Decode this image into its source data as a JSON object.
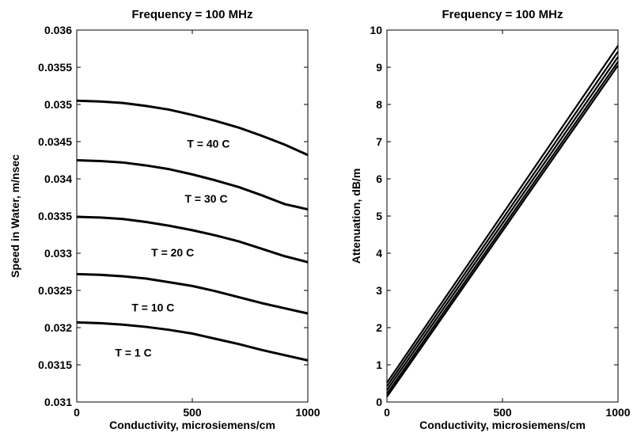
{
  "chart_data": [
    {
      "type": "line",
      "title": "Frequency = 100 MHz",
      "xlabel": "Conductivity, microsiemens/cm",
      "ylabel": "Speed in Water, m/nsec",
      "xlim": [
        0,
        1000
      ],
      "ylim": [
        0.031,
        0.036
      ],
      "xticks": [
        "0",
        "500",
        "1000"
      ],
      "yticks": [
        "0.031",
        "0.0315",
        "0.032",
        "0.0325",
        "0.033",
        "0.0335",
        "0.034",
        "0.0345",
        "0.035",
        "0.0355",
        "0.036"
      ],
      "grid": false,
      "series": [
        {
          "name": "T = 40 C",
          "x": [
            0,
            100,
            200,
            300,
            400,
            500,
            600,
            700,
            800,
            900,
            1000
          ],
          "values": [
            0.03505,
            0.03504,
            0.03502,
            0.03498,
            0.03493,
            0.03486,
            0.03478,
            0.03469,
            0.03458,
            0.03446,
            0.03432
          ]
        },
        {
          "name": "T = 30 C",
          "x": [
            0,
            100,
            200,
            300,
            400,
            500,
            600,
            700,
            800,
            900,
            1000
          ],
          "values": [
            0.03425,
            0.03424,
            0.03422,
            0.03418,
            0.03413,
            0.03406,
            0.03398,
            0.03389,
            0.03378,
            0.03366,
            0.03359
          ]
        },
        {
          "name": "T = 20 C",
          "x": [
            0,
            100,
            200,
            300,
            400,
            500,
            600,
            700,
            800,
            900,
            1000
          ],
          "values": [
            0.03349,
            0.03348,
            0.03346,
            0.03342,
            0.03337,
            0.03331,
            0.03324,
            0.03316,
            0.03306,
            0.03296,
            0.03288
          ]
        },
        {
          "name": "T = 10 C",
          "x": [
            0,
            100,
            200,
            300,
            400,
            500,
            600,
            700,
            800,
            900,
            1000
          ],
          "values": [
            0.03272,
            0.03271,
            0.03269,
            0.03266,
            0.03261,
            0.03256,
            0.03249,
            0.03241,
            0.03233,
            0.03226,
            0.03219
          ]
        },
        {
          "name": "T = 1 C",
          "x": [
            0,
            100,
            200,
            300,
            400,
            500,
            600,
            700,
            800,
            900,
            1000
          ],
          "values": [
            0.03207,
            0.03206,
            0.03204,
            0.03201,
            0.03197,
            0.03192,
            0.03185,
            0.03178,
            0.0317,
            0.03163,
            0.03156
          ]
        }
      ],
      "annotations": [
        {
          "text": "T = 40 C",
          "x": 570,
          "y": 0.03442
        },
        {
          "text": "T = 30 C",
          "x": 560,
          "y": 0.03368
        },
        {
          "text": "T = 20 C",
          "x": 415,
          "y": 0.03296
        },
        {
          "text": "T = 10 C",
          "x": 330,
          "y": 0.03222
        },
        {
          "text": "T = 1 C",
          "x": 245,
          "y": 0.03161
        }
      ]
    },
    {
      "type": "line",
      "title": "Frequency = 100 MHz",
      "xlabel": "Conductivity, microsiemens/cm",
      "ylabel": "Attenuation, dB/m",
      "xlim": [
        0,
        1000
      ],
      "ylim": [
        0,
        10
      ],
      "xticks": [
        "0",
        "500",
        "1000"
      ],
      "yticks": [
        "0",
        "1",
        "2",
        "3",
        "4",
        "5",
        "6",
        "7",
        "8",
        "9",
        "10"
      ],
      "grid": false,
      "series": [
        {
          "x": [
            0,
            1000
          ],
          "values": [
            0.52,
            9.58
          ]
        },
        {
          "x": [
            0,
            1000
          ],
          "values": [
            0.42,
            9.42
          ]
        },
        {
          "x": [
            0,
            1000
          ],
          "values": [
            0.32,
            9.28
          ]
        },
        {
          "x": [
            0,
            1000
          ],
          "values": [
            0.22,
            9.15
          ]
        },
        {
          "x": [
            0,
            1000
          ],
          "values": [
            0.14,
            9.05
          ]
        }
      ]
    }
  ]
}
